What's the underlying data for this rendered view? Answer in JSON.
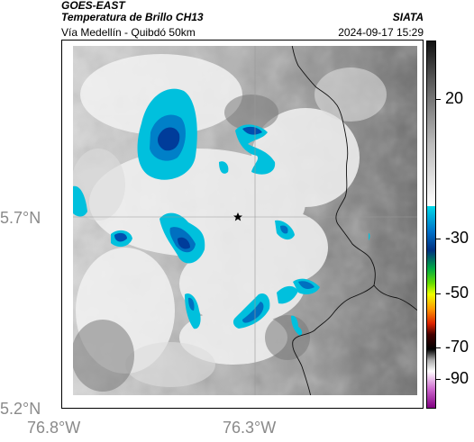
{
  "header": {
    "satellite": "GOES-EAST",
    "product": "Temperatura de Brillo CH13",
    "route": "Vía Medellín - Quibdó 50km",
    "org": "SIATA",
    "datetime": "2024-09-17 15:29"
  },
  "map": {
    "lon_labels": [
      "76.8°W",
      "76.3°W"
    ],
    "lat_labels": [
      "5.7°N",
      "5.2°N"
    ],
    "marker": "star-marker"
  },
  "colorbar": {
    "labels": [
      "20",
      "-30",
      "-50",
      "-70",
      "-90"
    ],
    "colors": {
      "gray_top": "#1a1a1a",
      "gray_mid": "#ffffff",
      "cyan": "#00c8e0",
      "blue": "#0050b0",
      "green": "#00cc00",
      "yellow": "#ffff00",
      "orange": "#ff6600",
      "red": "#cc0000",
      "dark": "#200000",
      "magenta": "#c040c0"
    }
  }
}
